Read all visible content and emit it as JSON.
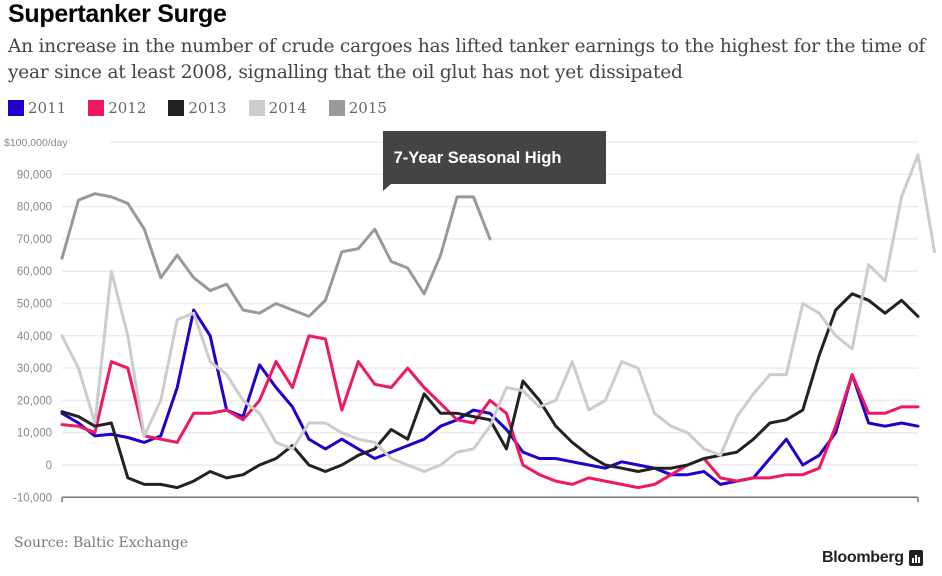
{
  "title": "Supertanker Surge",
  "subtitle": "An increase in the number of crude cargoes has lifted tanker earnings to the highest for the time of year since at least 2008, signalling that the oil glut has not yet dissipated",
  "source": "Source: Baltic Exchange",
  "brand": "Bloomberg",
  "legend": [
    {
      "label": "2011",
      "color": "#2200cc"
    },
    {
      "label": "2012",
      "color": "#f0195e"
    },
    {
      "label": "2013",
      "color": "#222222"
    },
    {
      "label": "2014",
      "color": "#cccccc"
    },
    {
      "label": "2015",
      "color": "#999999"
    }
  ],
  "chart_data": {
    "type": "line",
    "title": "Supertanker Surge",
    "xlabel": "",
    "ylabel": "$/day",
    "y_unit_label": "$100,000/day",
    "ylim": [
      -10000,
      100000
    ],
    "yticks": [
      -10000,
      0,
      10000,
      20000,
      30000,
      40000,
      50000,
      60000,
      70000,
      80000,
      90000,
      100000
    ],
    "ytick_labels": [
      "-10,000",
      "0",
      "10,000",
      "20,000",
      "30,000",
      "40,000",
      "50,000",
      "60,000",
      "70,000",
      "80,000",
      "90,000",
      "$100,000/day"
    ],
    "x": "week of year (0-52)",
    "xlim": [
      0,
      52
    ],
    "grid": true,
    "legend_position": "top-left",
    "annotation": {
      "text": "7-Year Seasonal High",
      "series": "2015",
      "week": 19.7,
      "value": 84000
    },
    "series": [
      {
        "name": "2011",
        "color": "#2200cc",
        "values": [
          16000,
          13000,
          9000,
          9500,
          8500,
          7000,
          9000,
          24000,
          48000,
          40000,
          17000,
          15000,
          31000,
          24000,
          18000,
          8000,
          5000,
          8000,
          5000,
          2000,
          4000,
          6000,
          8000,
          12000,
          14000,
          17000,
          16000,
          11000,
          4000,
          2000,
          2000,
          1000,
          0,
          -1000,
          1000,
          0,
          -1000,
          -3000,
          -3000,
          -2000,
          -6000,
          -5000,
          -4000,
          2000,
          8000,
          0,
          3000,
          10000,
          28000,
          13000,
          12000,
          13000,
          12000
        ]
      },
      {
        "name": "2012",
        "color": "#f0195e",
        "values": [
          12500,
          12000,
          10000,
          32000,
          30000,
          9000,
          8000,
          7000,
          16000,
          16000,
          17000,
          14000,
          20000,
          32000,
          24000,
          40000,
          39000,
          17000,
          32000,
          25000,
          24000,
          30000,
          24000,
          19000,
          14000,
          13000,
          20000,
          16000,
          0,
          -3000,
          -5000,
          -6000,
          -4000,
          -5000,
          -6000,
          -7000,
          -6000,
          -3000,
          0,
          2000,
          -4000,
          -5000,
          -4000,
          -4000,
          -3000,
          -3000,
          -1000,
          12000,
          28000,
          16000,
          16000,
          18000,
          18000
        ]
      },
      {
        "name": "2013",
        "color": "#222222",
        "values": [
          16500,
          15000,
          12000,
          13000,
          -4000,
          -6000,
          -6000,
          -7000,
          -5000,
          -2000,
          -4000,
          -3000,
          0,
          2000,
          6000,
          0,
          -2000,
          0,
          3000,
          5000,
          11000,
          8000,
          22000,
          16000,
          16000,
          15000,
          14000,
          5000,
          26000,
          20000,
          12000,
          7000,
          3000,
          0,
          -1000,
          -2000,
          -1000,
          -1000,
          0,
          2000,
          3000,
          4000,
          8000,
          13000,
          14000,
          17000,
          34000,
          48000,
          53000,
          51000,
          47000,
          51000,
          46000
        ]
      },
      {
        "name": "2014",
        "color": "#cccccc",
        "values": [
          40000,
          30000,
          13000,
          60000,
          40000,
          9000,
          20000,
          45000,
          47000,
          32000,
          28000,
          20000,
          16000,
          7000,
          5000,
          13000,
          13000,
          10000,
          8000,
          7000,
          2000,
          0,
          -2000,
          0,
          4000,
          5000,
          12000,
          24000,
          23000,
          18000,
          20000,
          32000,
          17000,
          20000,
          32000,
          30000,
          16000,
          12000,
          10000,
          5000,
          3000,
          15000,
          22000,
          28000,
          28000,
          50000,
          47000,
          40000,
          36000,
          62000,
          57000,
          83000,
          96000,
          66000
        ]
      },
      {
        "name": "2015",
        "color": "#999999",
        "values": [
          64000,
          82000,
          84000,
          83000,
          81000,
          73000,
          58000,
          65000,
          58000,
          54000,
          56000,
          48000,
          47000,
          50000,
          48000,
          46000,
          51000,
          66000,
          67000,
          73000,
          63000,
          61000,
          53000,
          65000,
          83000,
          83000,
          70000
        ]
      }
    ]
  }
}
